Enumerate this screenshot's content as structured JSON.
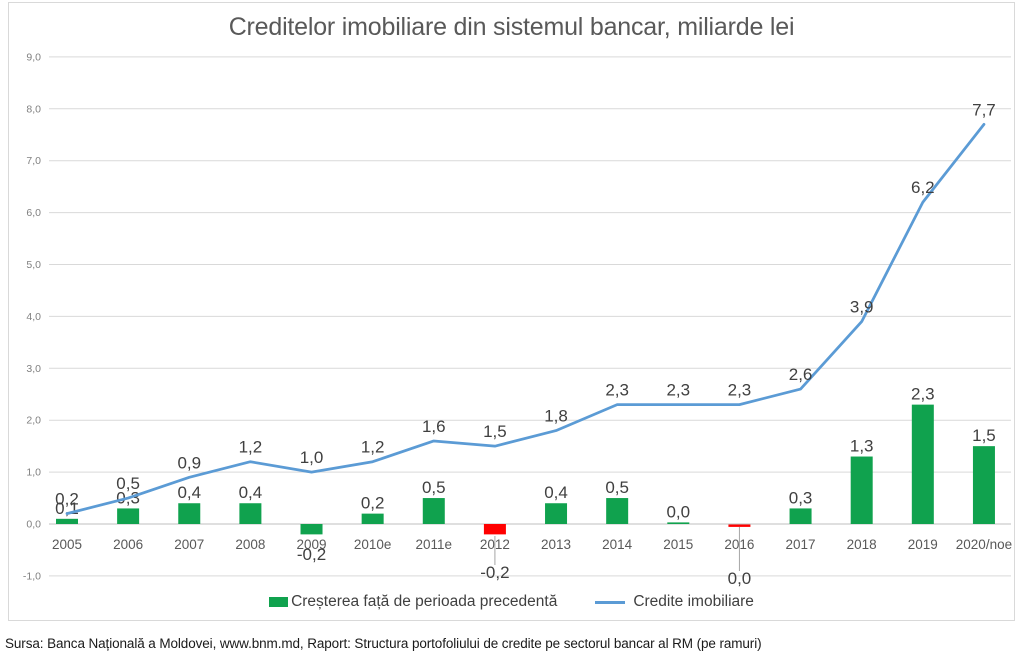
{
  "chart_data": {
    "type": "combo",
    "title": "Creditelor imobiliare din sistemul bancar, miliarde lei",
    "categories": [
      "2005",
      "2006",
      "2007",
      "2008",
      "2009",
      "2010e",
      "2011e",
      "2012",
      "2013",
      "2014",
      "2015",
      "2016",
      "2017",
      "2018",
      "2019",
      "2020/noe"
    ],
    "series": [
      {
        "name": "Creșterea față de perioada precedentă",
        "type": "bar",
        "values": [
          0.1,
          0.3,
          0.4,
          0.4,
          -0.2,
          0.2,
          0.5,
          -0.2,
          0.4,
          0.5,
          0.0,
          0.0,
          0.3,
          1.3,
          2.3,
          1.5
        ],
        "labels": [
          "0,1",
          "0,3",
          "0,4",
          "0,4",
          "-0,2",
          "0,2",
          "0,5",
          "-0,2",
          "0,4",
          "0,5",
          "0,0",
          "0,0",
          "0,3",
          "1,3",
          "2,3",
          "1,5"
        ],
        "colors": [
          "green",
          "green",
          "green",
          "green",
          "green",
          "green",
          "green",
          "red",
          "green",
          "green",
          "green",
          "red",
          "green",
          "green",
          "green",
          "green"
        ],
        "label_pos": [
          "above",
          "above",
          "above",
          "above",
          "below",
          "above",
          "above",
          "below-leader",
          "above",
          "above",
          "above",
          "below-leader",
          "above",
          "above",
          "above",
          "above"
        ]
      },
      {
        "name": "Credite imobiliare",
        "type": "line",
        "values": [
          0.2,
          0.5,
          0.9,
          1.2,
          1.0,
          1.2,
          1.6,
          1.5,
          1.8,
          2.3,
          2.3,
          2.3,
          2.6,
          3.9,
          6.2,
          7.7
        ],
        "labels": [
          "0,2",
          "0,5",
          "0,9",
          "1,2",
          "1,0",
          "1,2",
          "1,6",
          "1,5",
          "1,8",
          "2,3",
          "2,3",
          "2,3",
          "2,6",
          "3,9",
          "6,2",
          "7,7"
        ]
      }
    ],
    "ylim": [
      -1,
      9
    ],
    "ytick_step": 1,
    "ytick_labels": [
      "9,0",
      "8,0",
      "7,0",
      "6,0",
      "5,0",
      "4,0",
      "3,0",
      "2,0",
      "1,0",
      "0,0",
      "-1,0"
    ],
    "grid": true,
    "legend_position": "bottom",
    "palette": {
      "green": "#10A24E",
      "red": "#FF0000",
      "line_blue": "#5B9BD5",
      "gridline": "#D9D9D9",
      "axis_line": "#BFBFBF",
      "leader": "#A6A6A6",
      "data_label": "#404040",
      "x_label": "#595959",
      "y_label": "#808080",
      "title": "#595959"
    }
  },
  "source_note": "Sursa: Banca Națională a Moldovei, www.bnm.md, Raport: Structura portofoliului de credite pe sectorul bancar al RM (pe ramuri)"
}
